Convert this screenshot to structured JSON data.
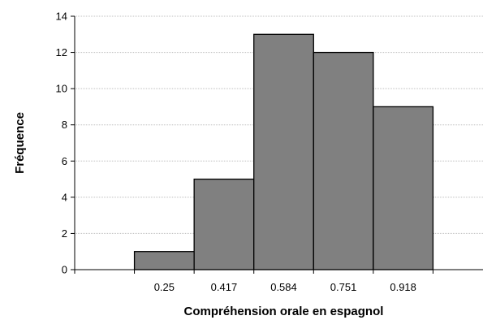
{
  "chart_data": {
    "type": "bar",
    "title": "",
    "xlabel": "Compréhension orale en espagnol",
    "ylabel": "Fréquence",
    "categories": [
      "0.25",
      "0.417",
      "0.584",
      "0.751",
      "0.918"
    ],
    "values": [
      1,
      5,
      13,
      12,
      9
    ],
    "bins": 7,
    "first_bar_bin": 1,
    "ylim": [
      0,
      14
    ],
    "yticks": [
      0,
      2,
      4,
      6,
      8,
      10,
      12,
      14
    ],
    "grid": true,
    "legend": "none",
    "colors": {
      "bar_fill": "#808080",
      "bar_stroke": "#000000",
      "grid": "#bfbfbf"
    }
  }
}
